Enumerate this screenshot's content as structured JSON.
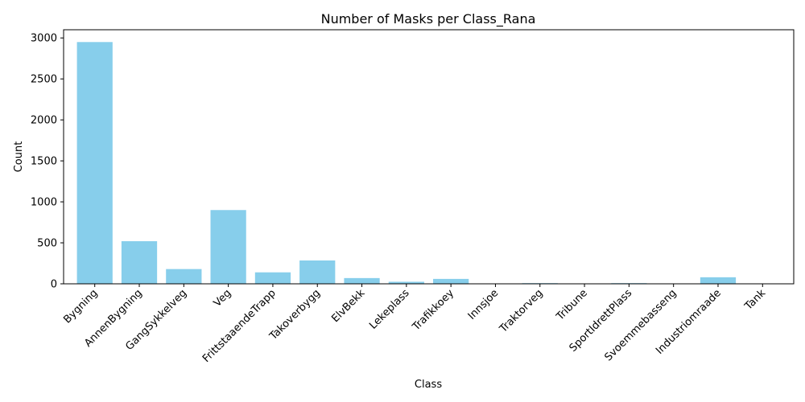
{
  "chart_data": {
    "type": "bar",
    "title": "Number of Masks per Class_Rana",
    "xlabel": "Class",
    "ylabel": "Count",
    "categories": [
      "Bygning",
      "AnnenBygning",
      "GangSykkelveg",
      "Veg",
      "FrittstaaendeTrapp",
      "Takoverbygg",
      "ElvBekk",
      "Lekeplass",
      "Trafikkoey",
      "Innsjoe",
      "Traktorveg",
      "Tribune",
      "SportIdrettPlass",
      "Svoemmebasseng",
      "Industriomraade",
      "Tank"
    ],
    "values": [
      2950,
      520,
      180,
      900,
      140,
      285,
      70,
      25,
      60,
      2,
      8,
      2,
      8,
      2,
      80,
      2
    ],
    "ylim": [
      0,
      3100
    ],
    "yticks": [
      0,
      500,
      1000,
      1500,
      2000,
      2500,
      3000
    ],
    "bar_color": "#87CEEB",
    "grid": false,
    "legend": "none"
  }
}
